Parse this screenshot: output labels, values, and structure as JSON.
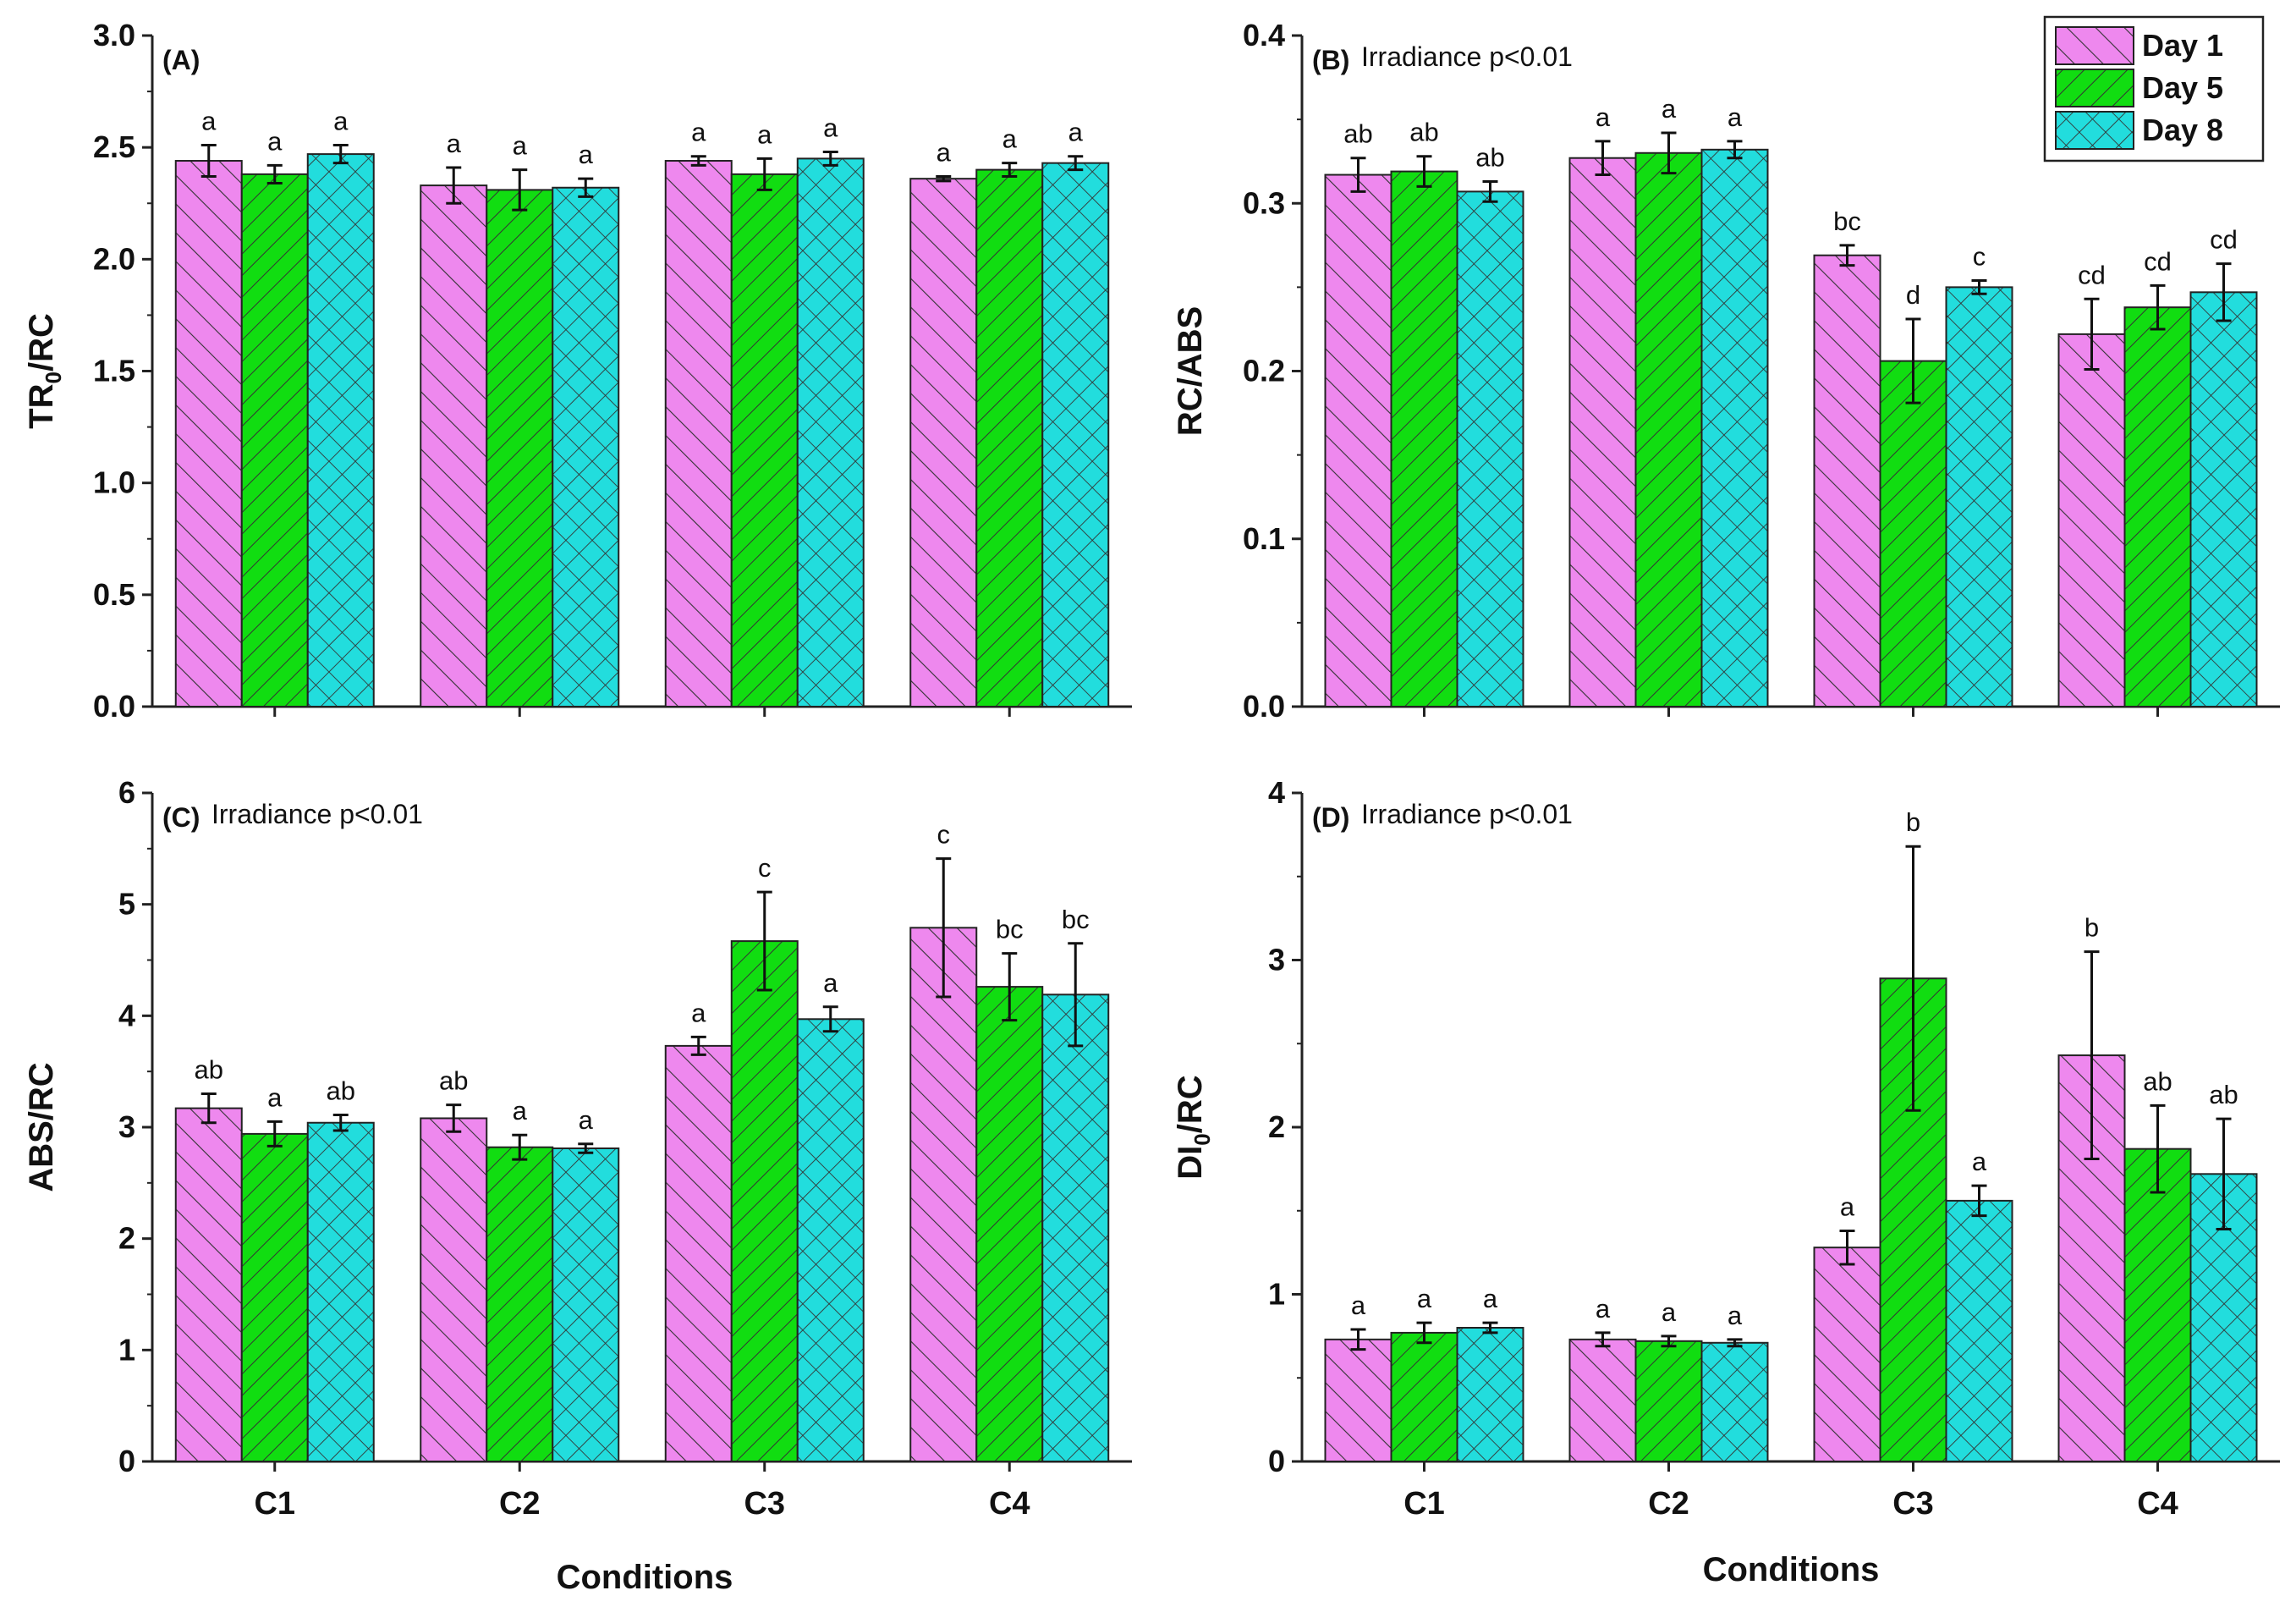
{
  "figure": {
    "x_title": "Conditions",
    "series_names": [
      "Day 1",
      "Day 5",
      "Day 8"
    ],
    "colors": {
      "day1": "#ee88ee",
      "day5": "#11dd11",
      "day8": "#22dddd",
      "axis": "#222222"
    }
  },
  "chart_data": [
    {
      "type": "bar",
      "panel": "(A)",
      "annotation": "",
      "ylabel": "TR",
      "ylabel_sub": "0",
      "ylabel_rest": "/RC",
      "categories": [
        "C1",
        "C2",
        "C3",
        "C4"
      ],
      "ylim": [
        0,
        3.0
      ],
      "yticks": [
        "0.0",
        "0.5",
        "1.0",
        "1.5",
        "2.0",
        "2.5",
        "3.0"
      ],
      "series": [
        {
          "name": "Day 1",
          "values": [
            2.44,
            2.33,
            2.44,
            2.36
          ],
          "errors": [
            0.07,
            0.08,
            0.02,
            0.01
          ],
          "letters": [
            "a",
            "a",
            "a",
            "a"
          ]
        },
        {
          "name": "Day 5",
          "values": [
            2.38,
            2.31,
            2.38,
            2.4
          ],
          "errors": [
            0.04,
            0.09,
            0.07,
            0.03
          ],
          "letters": [
            "a",
            "a",
            "a",
            "a"
          ]
        },
        {
          "name": "Day 8",
          "values": [
            2.47,
            2.32,
            2.45,
            2.43
          ],
          "errors": [
            0.04,
            0.04,
            0.03,
            0.03
          ],
          "letters": [
            "a",
            "a",
            "a",
            "a"
          ]
        }
      ]
    },
    {
      "type": "bar",
      "panel": "(B)",
      "annotation": "Irradiance p<0.01",
      "ylabel": "RC/ABS",
      "ylabel_sub": "",
      "ylabel_rest": "",
      "categories": [
        "C1",
        "C2",
        "C3",
        "C4"
      ],
      "ylim": [
        0,
        0.4
      ],
      "yticks": [
        "0.0",
        "0.1",
        "0.2",
        "0.3",
        "0.4"
      ],
      "series": [
        {
          "name": "Day 1",
          "values": [
            0.317,
            0.327,
            0.269,
            0.222
          ],
          "errors": [
            0.01,
            0.01,
            0.006,
            0.021
          ],
          "letters": [
            "ab",
            "a",
            "bc",
            "cd"
          ]
        },
        {
          "name": "Day 5",
          "values": [
            0.319,
            0.33,
            0.206,
            0.238
          ],
          "errors": [
            0.009,
            0.012,
            0.025,
            0.013
          ],
          "letters": [
            "ab",
            "a",
            "d",
            "cd"
          ]
        },
        {
          "name": "Day 8",
          "values": [
            0.307,
            0.332,
            0.25,
            0.247
          ],
          "errors": [
            0.006,
            0.005,
            0.004,
            0.017
          ],
          "letters": [
            "ab",
            "a",
            "c",
            "cd"
          ]
        }
      ],
      "legend": "top-right"
    },
    {
      "type": "bar",
      "panel": "(C)",
      "annotation": "Irradiance p<0.01",
      "ylabel": "ABS/RC",
      "ylabel_sub": "",
      "ylabel_rest": "",
      "categories": [
        "C1",
        "C2",
        "C3",
        "C4"
      ],
      "ylim": [
        0,
        6
      ],
      "yticks": [
        "0",
        "1",
        "2",
        "3",
        "4",
        "5",
        "6"
      ],
      "series": [
        {
          "name": "Day 1",
          "values": [
            3.17,
            3.08,
            3.73,
            4.79
          ],
          "errors": [
            0.13,
            0.12,
            0.08,
            0.62
          ],
          "letters": [
            "ab",
            "ab",
            "a",
            "c"
          ]
        },
        {
          "name": "Day 5",
          "values": [
            2.94,
            2.82,
            4.67,
            4.26
          ],
          "errors": [
            0.11,
            0.11,
            0.44,
            0.3
          ],
          "letters": [
            "a",
            "a",
            "c",
            "bc"
          ]
        },
        {
          "name": "Day 8",
          "values": [
            3.04,
            2.81,
            3.97,
            4.19
          ],
          "errors": [
            0.07,
            0.04,
            0.11,
            0.46
          ],
          "letters": [
            "ab",
            "a",
            "a",
            "bc"
          ]
        }
      ]
    },
    {
      "type": "bar",
      "panel": "(D)",
      "annotation": "Irradiance p<0.01",
      "ylabel": "DI",
      "ylabel_sub": "0",
      "ylabel_rest": "/RC",
      "categories": [
        "C1",
        "C2",
        "C3",
        "C4"
      ],
      "ylim": [
        0,
        4
      ],
      "yticks": [
        "0",
        "1",
        "2",
        "3",
        "4"
      ],
      "series": [
        {
          "name": "Day 1",
          "values": [
            0.73,
            0.73,
            1.28,
            2.43
          ],
          "errors": [
            0.06,
            0.04,
            0.1,
            0.62
          ],
          "letters": [
            "a",
            "a",
            "a",
            "b"
          ]
        },
        {
          "name": "Day 5",
          "values": [
            0.77,
            0.72,
            2.89,
            1.87
          ],
          "errors": [
            0.06,
            0.03,
            0.79,
            0.26
          ],
          "letters": [
            "a",
            "a",
            "b",
            "ab"
          ]
        },
        {
          "name": "Day 8",
          "values": [
            0.8,
            0.71,
            1.56,
            1.72
          ],
          "errors": [
            0.03,
            0.02,
            0.09,
            0.33
          ],
          "letters": [
            "a",
            "a",
            "a",
            "ab"
          ]
        }
      ]
    }
  ]
}
